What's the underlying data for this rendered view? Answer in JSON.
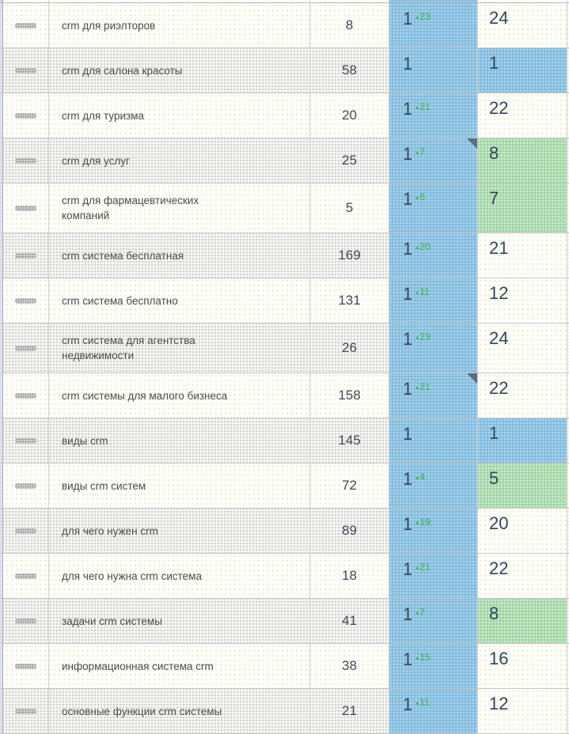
{
  "table": {
    "icons": {
      "up_arrow": "▴",
      "drag_handle": "drag-handle-icon"
    },
    "colors": {
      "position_bg": "#8cc3e3",
      "good_bg": "#acddaf",
      "change_green": "#3cb14a",
      "number_text": "#31465c",
      "keyword_text": "#4c4c4c"
    },
    "rows": [
      {
        "keyword": "crm для риэлторов",
        "volume": "8",
        "position": "1",
        "change": "23",
        "result": "24",
        "result_style": "plain",
        "corner_note": false
      },
      {
        "keyword": "crm для салона красоты",
        "volume": "58",
        "position": "1",
        "change": null,
        "result": "1",
        "result_style": "blue",
        "corner_note": false
      },
      {
        "keyword": "crm для туризма",
        "volume": "20",
        "position": "1",
        "change": "21",
        "result": "22",
        "result_style": "plain",
        "corner_note": false
      },
      {
        "keyword": "crm для услуг",
        "volume": "25",
        "position": "1",
        "change": "7",
        "result": "8",
        "result_style": "green",
        "corner_note": true
      },
      {
        "keyword": "crm для фармацевтических компаний",
        "volume": "5",
        "position": "1",
        "change": "6",
        "result": "7",
        "result_style": "green",
        "corner_note": false
      },
      {
        "keyword": "crm система бесплатная",
        "volume": "169",
        "position": "1",
        "change": "20",
        "result": "21",
        "result_style": "plain",
        "corner_note": false
      },
      {
        "keyword": "crm система бесплатно",
        "volume": "131",
        "position": "1",
        "change": "11",
        "result": "12",
        "result_style": "plain",
        "corner_note": false
      },
      {
        "keyword": "crm система для агентства недвижимости",
        "volume": "26",
        "position": "1",
        "change": "23",
        "result": "24",
        "result_style": "plain",
        "corner_note": false
      },
      {
        "keyword": "crm системы для малого бизнеса",
        "volume": "158",
        "position": "1",
        "change": "21",
        "result": "22",
        "result_style": "plain",
        "corner_note": true
      },
      {
        "keyword": "виды crm",
        "volume": "145",
        "position": "1",
        "change": null,
        "result": "1",
        "result_style": "blue",
        "corner_note": false
      },
      {
        "keyword": "виды crm систем",
        "volume": "72",
        "position": "1",
        "change": "4",
        "result": "5",
        "result_style": "green",
        "corner_note": false
      },
      {
        "keyword": "для чего нужен crm",
        "volume": "89",
        "position": "1",
        "change": "19",
        "result": "20",
        "result_style": "plain",
        "corner_note": false
      },
      {
        "keyword": "для чего нужна crm система",
        "volume": "18",
        "position": "1",
        "change": "21",
        "result": "22",
        "result_style": "plain",
        "corner_note": false
      },
      {
        "keyword": "задачи crm системы",
        "volume": "41",
        "position": "1",
        "change": "7",
        "result": "8",
        "result_style": "green",
        "corner_note": false
      },
      {
        "keyword": "информационная система crm",
        "volume": "38",
        "position": "1",
        "change": "15",
        "result": "16",
        "result_style": "plain",
        "corner_note": false
      },
      {
        "keyword": "основные функции crm системы",
        "volume": "21",
        "position": "1",
        "change": "11",
        "result": "12",
        "result_style": "plain",
        "corner_note": false
      }
    ]
  }
}
